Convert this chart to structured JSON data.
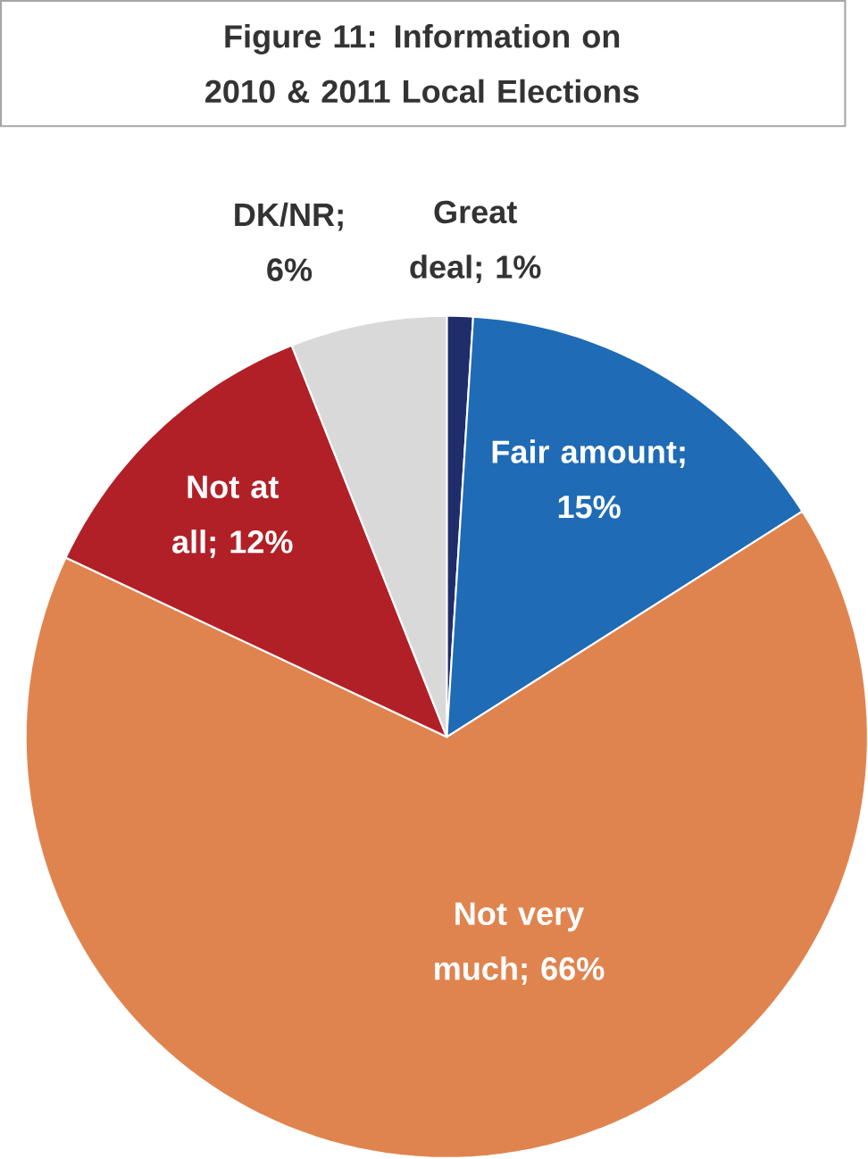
{
  "chart_data": {
    "type": "pie",
    "title": "Figure 11: Information on 2010 & 2011 Local Elections",
    "categories": [
      "Great deal; 1%",
      "Fair amount; 15%",
      "Not very much; 66%",
      "Not at all; 12%",
      "DK/NR; 6%"
    ],
    "values": [
      1,
      15,
      66,
      12,
      6
    ],
    "colors": [
      "#1f2d6b",
      "#1f6bb5",
      "#e0844f",
      "#b22027",
      "#d9d9d9"
    ]
  }
}
